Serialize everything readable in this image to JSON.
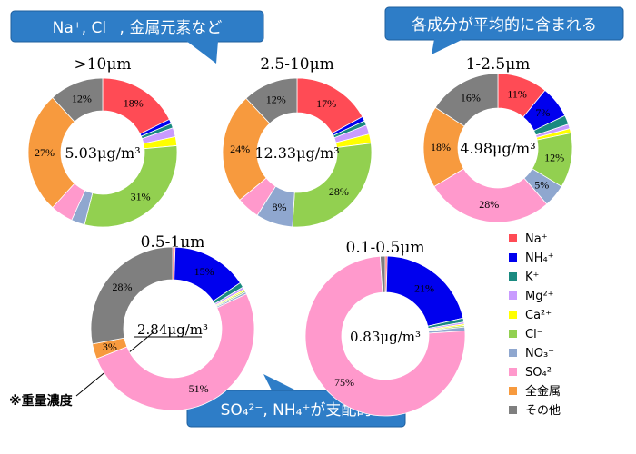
{
  "callouts": {
    "top_left": {
      "text": "Na⁺, Cl⁻ , 金属元素など",
      "color": "#2e7dc7"
    },
    "top_right": {
      "text": "各成分が平均的に含まれる",
      "color": "#2e7dc7"
    },
    "bottom": {
      "text": "SO₄²⁻, NH₄⁺が支配的",
      "color": "#2e7dc7"
    }
  },
  "note": "※重量濃度",
  "chart_data": {
    "type": "pie",
    "categories": [
      "Na⁺",
      "NH₄⁺",
      "K⁺",
      "Mg²⁺",
      "Ca²⁺",
      "Cl⁻",
      "NO₃⁻",
      "SO₄²⁻",
      "全金属",
      "その他"
    ],
    "colors": [
      "#ff4b55",
      "#0000ee",
      "#1a8a80",
      "#c99bff",
      "#ffff00",
      "#92d050",
      "#8fa7cf",
      "#ff99cc",
      "#f79a3e",
      "#7f7f7f"
    ],
    "legend": {
      "position": "right",
      "entries": [
        "Na⁺",
        "NH₄⁺",
        "K⁺",
        "Mg²⁺",
        "Ca²⁺",
        "Cl⁻",
        "NO₃⁻",
        "SO₄²⁻",
        "全金属",
        "その他"
      ]
    },
    "charts": [
      {
        "title": ">10μm",
        "center_label": "5.03μg/m³",
        "values": [
          18,
          1,
          1,
          2,
          2,
          31,
          3,
          5,
          27,
          12
        ],
        "labels": [
          "18%",
          "",
          "",
          "",
          "",
          "31%",
          "",
          "",
          "27%",
          "12%"
        ]
      },
      {
        "title": "2.5-10μm",
        "center_label": "12.33μg/m³",
        "values": [
          17,
          1,
          1,
          2,
          2,
          28,
          8,
          5,
          24,
          12
        ],
        "labels": [
          "17%",
          "",
          "",
          "",
          "",
          "28%",
          "8%",
          "",
          "24%",
          "12%"
        ]
      },
      {
        "title": "1-2.5μm",
        "center_label": "4.98μg/m³",
        "values": [
          11,
          7,
          2,
          1,
          1,
          12,
          5,
          28,
          18,
          16
        ],
        "labels": [
          "11%",
          "7%",
          "",
          "",
          "",
          "12%",
          "5%",
          "28%",
          "18%",
          "16%"
        ]
      },
      {
        "title": "0.5-1μm",
        "center_label": "2.84μg/m³",
        "values": [
          0.5,
          15,
          1,
          0.5,
          0.3,
          0.3,
          0.4,
          51,
          3,
          28
        ],
        "labels": [
          "",
          "15%",
          "",
          "",
          "",
          "",
          "",
          "51%",
          "3%",
          "28%"
        ]
      },
      {
        "title": "0.1-0.5μm",
        "center_label": "0.83μg/m³",
        "values": [
          0.4,
          21,
          0.8,
          0.4,
          0.3,
          0.3,
          0.8,
          75,
          0,
          1
        ],
        "labels": [
          "",
          "21%",
          "",
          "",
          "",
          "",
          "",
          "75%",
          "",
          ""
        ]
      }
    ]
  }
}
